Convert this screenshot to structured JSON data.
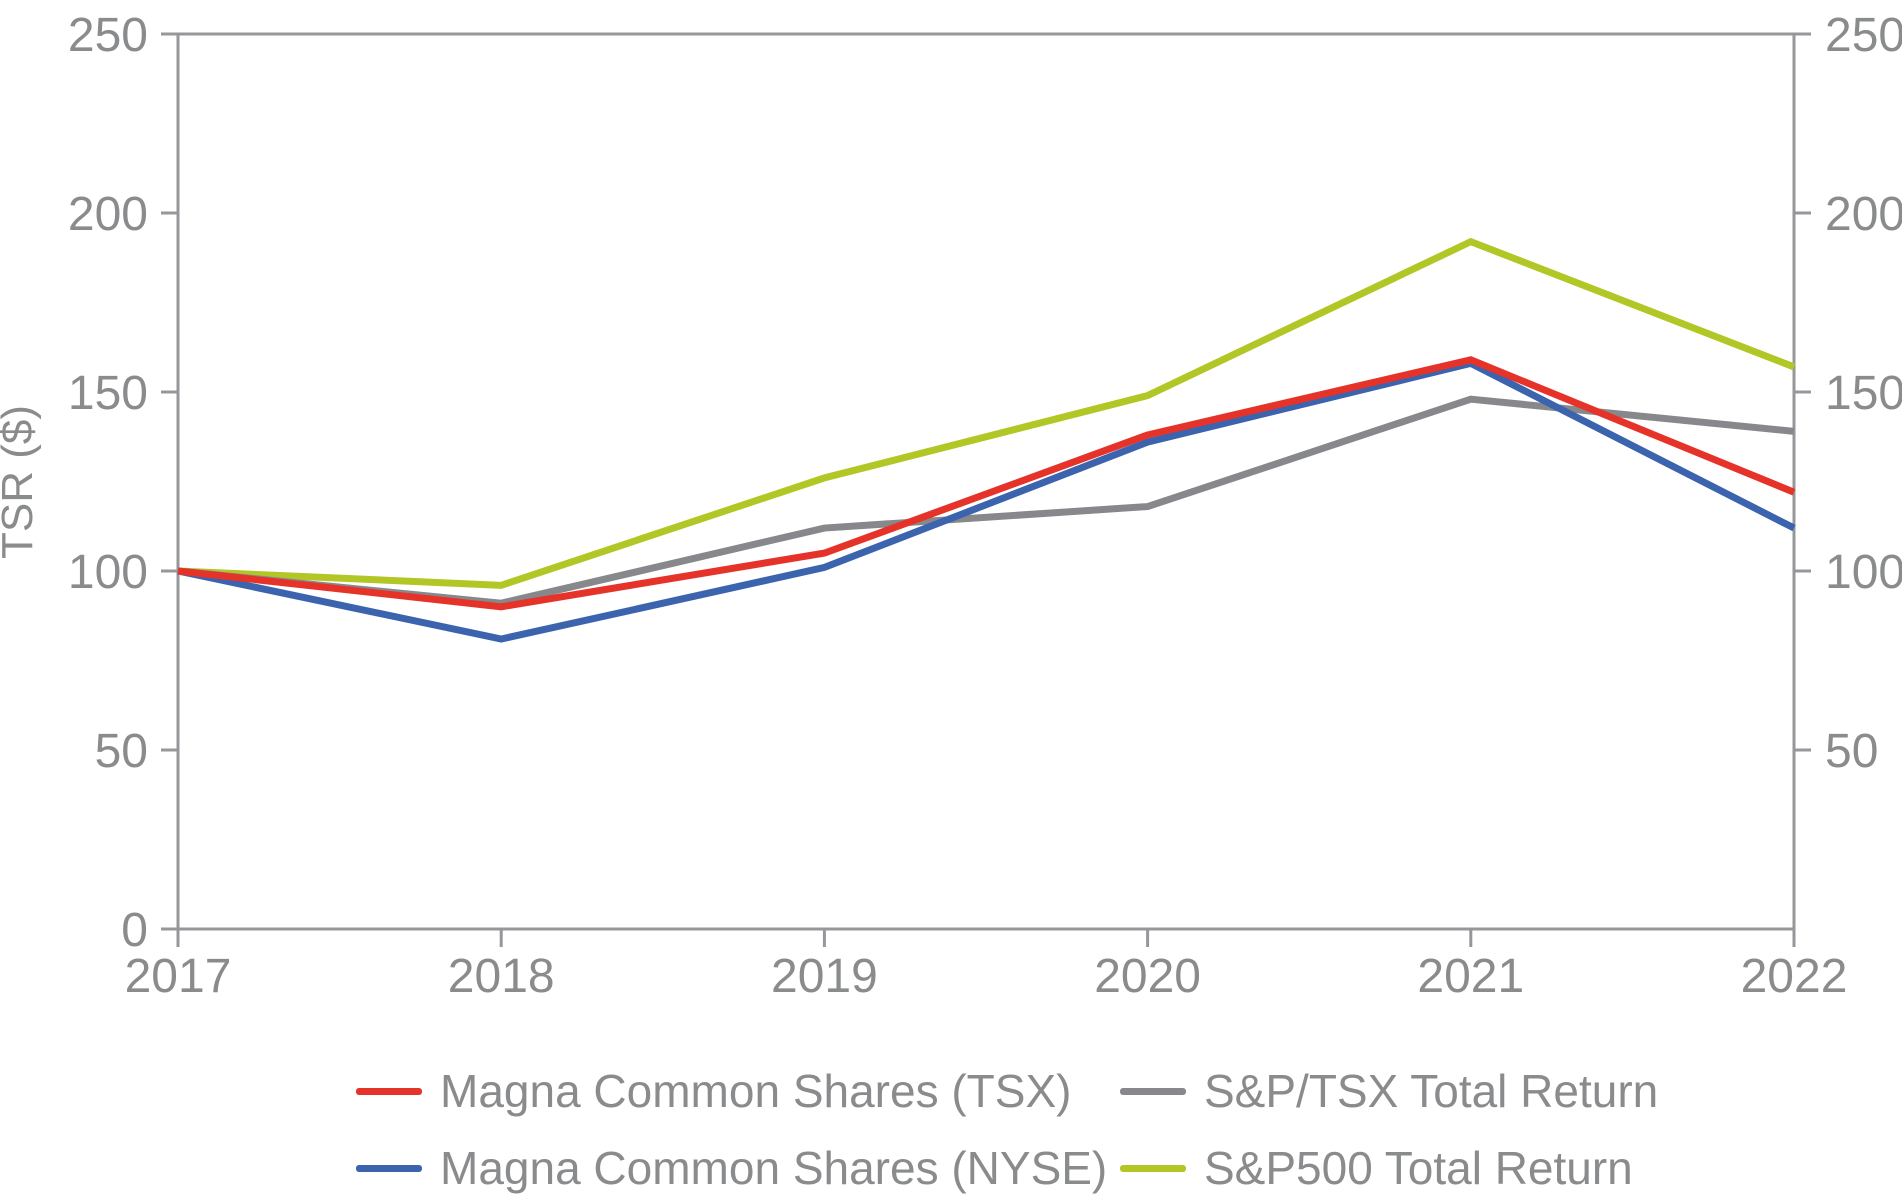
{
  "chart_data": {
    "type": "line",
    "title": "",
    "ylabel": "TSR ($)",
    "x_categories": [
      "2017",
      "2018",
      "2019",
      "2020",
      "2021",
      "2022"
    ],
    "ylim": [
      0,
      250
    ],
    "yticks_left": [
      0,
      50,
      100,
      150,
      200,
      250
    ],
    "yticks_right": [
      50,
      100,
      150,
      200,
      250
    ],
    "grid": false,
    "legend_position": "bottom",
    "series": [
      {
        "name": "Magna Common Shares (TSX)",
        "color": "#e6332a",
        "values": [
          100,
          90,
          105,
          138,
          159,
          122
        ]
      },
      {
        "name": "Magna Common Shares (NYSE)",
        "color": "#3b63ae",
        "values": [
          100,
          81,
          101,
          136,
          158,
          112
        ]
      },
      {
        "name": "S&P/TSX Total Return",
        "color": "#87888b",
        "values": [
          100,
          91,
          112,
          118,
          148,
          139
        ]
      },
      {
        "name": "S&P500 Total Return",
        "color": "#b2c626",
        "values": [
          100,
          96,
          126,
          149,
          192,
          157
        ]
      }
    ]
  },
  "colors": {
    "axis": "#96979a",
    "text": "#8a8b8d",
    "background": "#ffffff"
  }
}
